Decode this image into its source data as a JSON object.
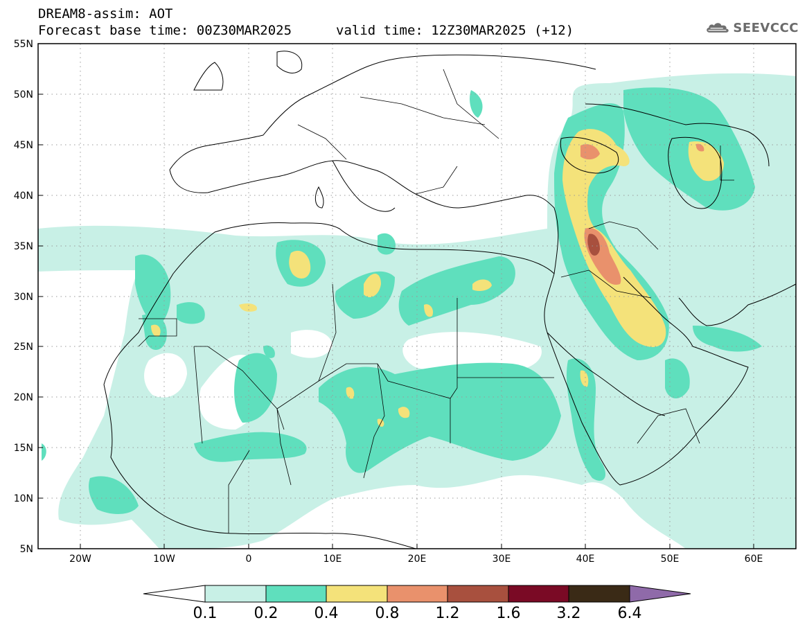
{
  "title": {
    "line1": "DREAM8-assim: AOT",
    "line2": "Forecast base time: 00Z30MAR2025",
    "line3": "valid time: 12Z30MAR2025 (+12)"
  },
  "logo": {
    "text": "SEEVCCC",
    "icon": "cloud-icon"
  },
  "map": {
    "lon_range": [
      -25,
      65
    ],
    "lat_range": [
      5,
      55
    ],
    "lat_ticks": [
      "55N",
      "50N",
      "45N",
      "40N",
      "35N",
      "30N",
      "25N",
      "20N",
      "15N",
      "10N",
      "5N"
    ],
    "lon_ticks": [
      "20W",
      "10W",
      "0",
      "10E",
      "20E",
      "30E",
      "40E",
      "50E",
      "60E"
    ],
    "grid": "dotted"
  },
  "colorbar": {
    "labels": [
      "0.1",
      "0.2",
      "0.4",
      "0.8",
      "1.2",
      "1.6",
      "3.2",
      "6.4"
    ],
    "colors": [
      "#c8f0e6",
      "#5fdfbd",
      "#f4e27a",
      "#e9916c",
      "#a8503e",
      "#7a0a25",
      "#3a2a16",
      "#8f6aa9"
    ],
    "under_color": "#ffffff",
    "over_color": "#8f6aa9"
  }
}
